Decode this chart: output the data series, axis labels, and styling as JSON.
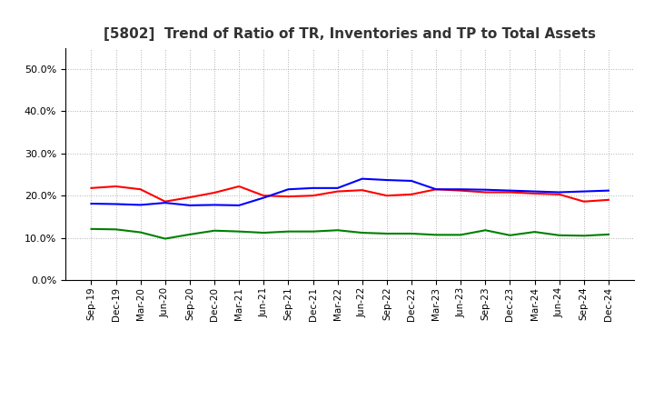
{
  "title": "[5802]  Trend of Ratio of TR, Inventories and TP to Total Assets",
  "x_labels": [
    "Sep-19",
    "Dec-19",
    "Mar-20",
    "Jun-20",
    "Sep-20",
    "Dec-20",
    "Mar-21",
    "Jun-21",
    "Sep-21",
    "Dec-21",
    "Mar-22",
    "Jun-22",
    "Sep-22",
    "Dec-22",
    "Mar-23",
    "Jun-23",
    "Sep-23",
    "Dec-23",
    "Mar-24",
    "Jun-24",
    "Sep-24",
    "Dec-24"
  ],
  "trade_receivables": [
    0.218,
    0.222,
    0.215,
    0.186,
    0.196,
    0.207,
    0.222,
    0.2,
    0.198,
    0.2,
    0.21,
    0.213,
    0.2,
    0.203,
    0.215,
    0.212,
    0.208,
    0.208,
    0.205,
    0.203,
    0.186,
    0.19
  ],
  "inventories": [
    0.181,
    0.18,
    0.178,
    0.183,
    0.177,
    0.178,
    0.177,
    0.195,
    0.215,
    0.218,
    0.218,
    0.24,
    0.237,
    0.235,
    0.215,
    0.215,
    0.214,
    0.212,
    0.21,
    0.208,
    0.21,
    0.212
  ],
  "trade_payables": [
    0.121,
    0.12,
    0.113,
    0.098,
    0.108,
    0.117,
    0.115,
    0.112,
    0.115,
    0.115,
    0.118,
    0.112,
    0.11,
    0.11,
    0.107,
    0.107,
    0.118,
    0.106,
    0.114,
    0.106,
    0.105,
    0.108
  ],
  "tr_color": "#ff0000",
  "inv_color": "#0000ff",
  "tp_color": "#008000",
  "ylim": [
    0.0,
    0.55
  ],
  "yticks": [
    0.0,
    0.1,
    0.2,
    0.3,
    0.4,
    0.5
  ],
  "background_color": "#ffffff",
  "grid_color": "#b0b0b0"
}
